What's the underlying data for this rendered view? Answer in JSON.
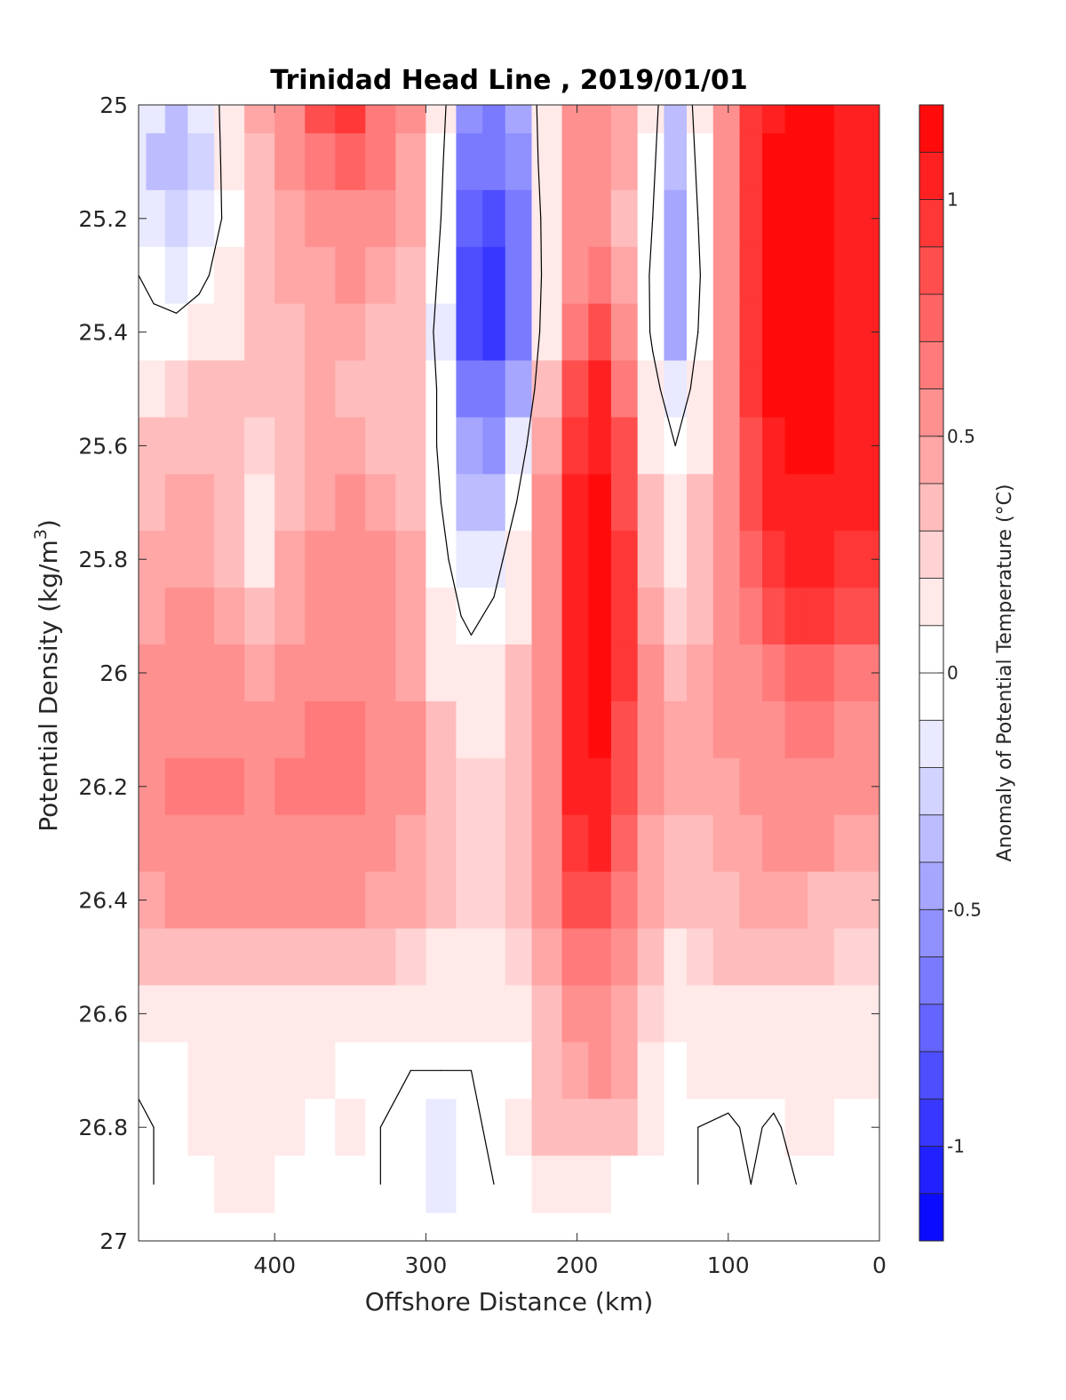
{
  "chart_data": {
    "type": "heatmap",
    "subtype": "filled-contour",
    "title": "Trinidad Head Line , 2019/01/01",
    "xlabel": "Offshore Distance (km)",
    "ylabel": "Potential Density (kg/m",
    "ylabel_superscript": "3",
    "ylabel_suffix": ")",
    "xlim": [
      490,
      0
    ],
    "ylim": [
      25,
      27
    ],
    "x_reversed": true,
    "y_reversed": true,
    "xticks": [
      400,
      300,
      200,
      100,
      0
    ],
    "xtick_labels": [
      "400",
      "300",
      "200",
      "100",
      "0"
    ],
    "yticks": [
      25,
      25.2,
      25.4,
      25.6,
      25.8,
      26,
      26.2,
      26.4,
      26.6,
      26.8,
      27
    ],
    "ytick_labels": [
      "25",
      "25.2",
      "25.4",
      "25.6",
      "25.8",
      "26",
      "26.2",
      "26.4",
      "26.6",
      "26.8",
      "27"
    ],
    "colorbar": {
      "label": "Anomaly of Potential Temperature (°C)",
      "range": [
        -1.2,
        1.2
      ],
      "step": 0.1,
      "ticks": [
        1,
        0.5,
        0,
        -0.5,
        -1
      ],
      "tick_labels": [
        "1",
        "0.5",
        "0",
        "-0.5",
        "-1"
      ],
      "min_color": "#0000ff",
      "mid_color": "#ffffff",
      "max_color": "#ff0000"
    },
    "zero_contour_color": "#000000",
    "field": {
      "x": [
        490,
        480,
        465,
        450,
        430,
        410,
        390,
        370,
        350,
        330,
        310,
        290,
        270,
        255,
        240,
        220,
        200,
        185,
        170,
        150,
        135,
        120,
        100,
        85,
        70,
        55,
        40,
        20
      ],
      "y": [
        25.0,
        25.1,
        25.2,
        25.3,
        25.4,
        25.5,
        25.6,
        25.7,
        25.8,
        25.9,
        26.0,
        26.1,
        26.2,
        26.3,
        26.4,
        26.5,
        26.6,
        26.7,
        26.8,
        26.9
      ],
      "z": [
        [
          -0.1,
          -0.2,
          -0.3,
          -0.2,
          0.1,
          0.4,
          0.6,
          0.8,
          0.9,
          0.7,
          0.5,
          0.1,
          -0.5,
          -0.6,
          -0.4,
          0.2,
          0.5,
          0.6,
          0.4,
          0.1,
          -0.3,
          0.1,
          0.6,
          0.9,
          1.1,
          1.2,
          1.2,
          1.0
        ],
        [
          -0.15,
          -0.3,
          -0.35,
          -0.25,
          0.1,
          0.35,
          0.5,
          0.65,
          0.75,
          0.65,
          0.45,
          0.05,
          -0.6,
          -0.7,
          -0.5,
          0.2,
          0.5,
          0.6,
          0.4,
          0.05,
          -0.35,
          0.05,
          0.6,
          0.95,
          1.15,
          1.2,
          1.2,
          1.0
        ],
        [
          -0.1,
          -0.2,
          -0.25,
          -0.15,
          0.05,
          0.3,
          0.45,
          0.55,
          0.6,
          0.55,
          0.4,
          0.0,
          -0.75,
          -0.85,
          -0.6,
          0.15,
          0.5,
          0.6,
          0.35,
          0.0,
          -0.4,
          0.0,
          0.6,
          0.95,
          1.15,
          1.2,
          1.2,
          1.0
        ],
        [
          0.0,
          -0.05,
          -0.1,
          -0.05,
          0.1,
          0.3,
          0.4,
          0.45,
          0.5,
          0.45,
          0.35,
          -0.05,
          -0.85,
          -0.95,
          -0.7,
          0.15,
          0.55,
          0.7,
          0.4,
          -0.05,
          -0.45,
          -0.05,
          0.6,
          0.95,
          1.15,
          1.2,
          1.2,
          1.0
        ],
        [
          0.05,
          0.05,
          0.05,
          0.1,
          0.2,
          0.3,
          0.35,
          0.4,
          0.4,
          0.35,
          0.3,
          -0.1,
          -0.85,
          -0.9,
          -0.65,
          0.2,
          0.7,
          0.85,
          0.5,
          -0.05,
          -0.4,
          0.0,
          0.6,
          0.95,
          1.15,
          1.2,
          1.2,
          1.0
        ],
        [
          0.15,
          0.2,
          0.25,
          0.3,
          0.3,
          0.35,
          0.35,
          0.4,
          0.35,
          0.3,
          0.3,
          -0.05,
          -0.6,
          -0.7,
          -0.45,
          0.3,
          0.8,
          1.0,
          0.7,
          0.1,
          -0.2,
          0.1,
          0.55,
          0.9,
          1.15,
          1.2,
          1.2,
          1.0
        ],
        [
          0.3,
          0.3,
          0.35,
          0.35,
          0.35,
          0.25,
          0.35,
          0.4,
          0.4,
          0.35,
          0.3,
          -0.05,
          -0.45,
          -0.5,
          -0.2,
          0.4,
          0.9,
          1.05,
          0.8,
          0.2,
          0.0,
          0.2,
          0.55,
          0.85,
          1.1,
          1.15,
          1.15,
          1.0
        ],
        [
          0.35,
          0.35,
          0.4,
          0.4,
          0.35,
          0.15,
          0.35,
          0.45,
          0.5,
          0.45,
          0.35,
          0.0,
          -0.3,
          -0.3,
          0.0,
          0.5,
          1.0,
          1.15,
          0.85,
          0.3,
          0.1,
          0.3,
          0.55,
          0.8,
          1.0,
          1.1,
          1.1,
          1.0
        ],
        [
          0.4,
          0.4,
          0.45,
          0.45,
          0.35,
          0.2,
          0.4,
          0.5,
          0.55,
          0.5,
          0.4,
          0.05,
          -0.15,
          -0.1,
          0.15,
          0.6,
          1.05,
          1.2,
          0.9,
          0.35,
          0.15,
          0.3,
          0.5,
          0.75,
          0.95,
          1.0,
          1.0,
          0.95
        ],
        [
          0.45,
          0.45,
          0.5,
          0.5,
          0.4,
          0.3,
          0.45,
          0.55,
          0.55,
          0.5,
          0.4,
          0.1,
          -0.05,
          0.05,
          0.2,
          0.6,
          1.05,
          1.2,
          0.9,
          0.45,
          0.25,
          0.35,
          0.5,
          0.7,
          0.85,
          0.9,
          0.9,
          0.85
        ],
        [
          0.5,
          0.5,
          0.55,
          0.55,
          0.5,
          0.45,
          0.55,
          0.6,
          0.6,
          0.55,
          0.45,
          0.2,
          0.1,
          0.15,
          0.3,
          0.6,
          1.05,
          1.2,
          0.9,
          0.5,
          0.35,
          0.4,
          0.5,
          0.6,
          0.7,
          0.75,
          0.75,
          0.7
        ],
        [
          0.55,
          0.55,
          0.6,
          0.6,
          0.6,
          0.55,
          0.6,
          0.65,
          0.65,
          0.6,
          0.5,
          0.3,
          0.2,
          0.2,
          0.3,
          0.6,
          1.05,
          1.2,
          0.85,
          0.5,
          0.4,
          0.4,
          0.5,
          0.55,
          0.6,
          0.65,
          0.65,
          0.6
        ],
        [
          0.55,
          0.6,
          0.65,
          0.65,
          0.65,
          0.6,
          0.65,
          0.65,
          0.65,
          0.6,
          0.5,
          0.3,
          0.25,
          0.25,
          0.3,
          0.6,
          1.0,
          1.1,
          0.8,
          0.5,
          0.4,
          0.4,
          0.45,
          0.5,
          0.55,
          0.6,
          0.6,
          0.55
        ],
        [
          0.55,
          0.55,
          0.6,
          0.6,
          0.6,
          0.55,
          0.6,
          0.6,
          0.6,
          0.55,
          0.45,
          0.3,
          0.25,
          0.25,
          0.3,
          0.55,
          0.9,
          1.0,
          0.75,
          0.45,
          0.35,
          0.35,
          0.4,
          0.45,
          0.5,
          0.5,
          0.5,
          0.45
        ],
        [
          0.45,
          0.45,
          0.5,
          0.5,
          0.5,
          0.5,
          0.5,
          0.5,
          0.5,
          0.45,
          0.4,
          0.3,
          0.25,
          0.25,
          0.3,
          0.5,
          0.8,
          0.85,
          0.65,
          0.4,
          0.3,
          0.3,
          0.35,
          0.4,
          0.4,
          0.4,
          0.35,
          0.3
        ],
        [
          0.3,
          0.3,
          0.35,
          0.35,
          0.35,
          0.35,
          0.35,
          0.35,
          0.35,
          0.3,
          0.25,
          0.2,
          0.2,
          0.2,
          0.25,
          0.45,
          0.65,
          0.7,
          0.55,
          0.3,
          0.2,
          0.25,
          0.3,
          0.3,
          0.3,
          0.3,
          0.3,
          0.25
        ],
        [
          0.2,
          0.2,
          0.2,
          0.2,
          0.2,
          0.2,
          0.2,
          0.2,
          0.2,
          0.15,
          0.15,
          0.1,
          0.1,
          0.1,
          0.15,
          0.35,
          0.5,
          0.55,
          0.45,
          0.25,
          0.1,
          0.15,
          0.2,
          0.2,
          0.2,
          0.2,
          0.2,
          0.15
        ],
        [
          0.05,
          0.05,
          0.05,
          0.1,
          0.1,
          0.15,
          0.1,
          0.1,
          0.05,
          0.0,
          0.0,
          0.0,
          0.0,
          0.0,
          0.05,
          0.3,
          0.45,
          0.5,
          0.4,
          0.2,
          0.05,
          0.1,
          0.15,
          0.1,
          0.15,
          0.15,
          0.15,
          0.1
        ],
        [
          -0.05,
          0.0,
          0.05,
          0.1,
          0.15,
          0.2,
          0.1,
          0.0,
          0.1,
          0.0,
          -0.05,
          -0.1,
          -0.05,
          0.05,
          0.1,
          0.3,
          0.35,
          0.35,
          0.3,
          0.1,
          0.05,
          0.0,
          -0.05,
          0.05,
          -0.05,
          0.1,
          0.15,
          0.05
        ],
        [
          -0.05,
          0.0,
          0.0,
          0.05,
          0.1,
          0.15,
          0.05,
          0.0,
          0.05,
          0.0,
          -0.05,
          -0.1,
          -0.05,
          0.0,
          0.05,
          0.1,
          0.1,
          0.1,
          0.05,
          0.05,
          0.0,
          0.0,
          -0.05,
          0.0,
          -0.05,
          0.0,
          0.0,
          0.0
        ]
      ]
    }
  }
}
